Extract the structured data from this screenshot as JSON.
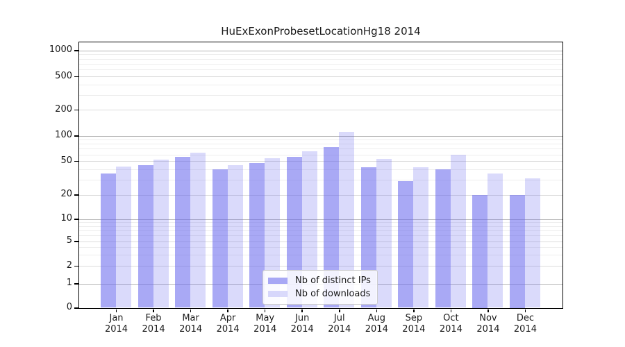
{
  "title": "HuExExonProbesetLocationHg18 2014",
  "chart_data": {
    "type": "bar",
    "title": "HuExExonProbesetLocationHg18 2014",
    "categories": [
      "Jan",
      "Feb",
      "Mar",
      "Apr",
      "May",
      "Jun",
      "Jul",
      "Aug",
      "Sep",
      "Oct",
      "Nov",
      "Dec"
    ],
    "category_year": "2014",
    "series": [
      {
        "name": "Nb of distinct IPs",
        "key": "ips",
        "values": [
          36,
          45,
          56,
          40,
          47,
          56,
          73,
          42,
          29,
          40,
          20,
          20
        ]
      },
      {
        "name": "Nb of downloads",
        "key": "downloads",
        "values": [
          43,
          52,
          63,
          45,
          54,
          66,
          110,
          53,
          42,
          60,
          36,
          31
        ]
      }
    ],
    "yscale": "symlog",
    "yticks": [
      0,
      1,
      2,
      5,
      10,
      20,
      50,
      100,
      200,
      500,
      1000
    ],
    "ytick_emphasis": [
      1,
      10,
      100,
      1000
    ],
    "yminor": [
      3,
      4,
      6,
      7,
      8,
      9,
      30,
      40,
      60,
      70,
      80,
      90,
      300,
      400,
      600,
      700,
      800,
      900
    ],
    "ylim": [
      0,
      1250
    ],
    "xlabel": "",
    "ylabel": "",
    "grid": true,
    "legend_position": "lower-center"
  },
  "legend": {
    "entries": [
      {
        "label": "Nb of distinct IPs",
        "series": "ips"
      },
      {
        "label": "Nb of downloads",
        "series": "downloads"
      }
    ]
  },
  "colors": {
    "ips_fill": "rgba(102,102,238,0.56)",
    "downloads_fill": "rgba(102,102,238,0.24)",
    "grid_major_emphasis": "#b3b3b3",
    "grid_major": "#dbdbdb",
    "grid_minor": "#ededed",
    "axis": "#000000",
    "text": "#1a1a1a",
    "legend_border": "#cccccc"
  }
}
